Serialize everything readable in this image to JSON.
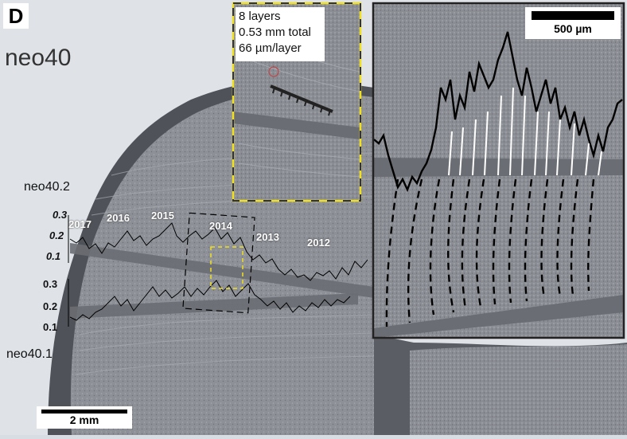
{
  "panel": {
    "letter": "D",
    "sample": "neo40"
  },
  "subsamples": {
    "upper": "neo40.2",
    "lower": "neo40.1"
  },
  "upper_ticks": [
    "0.3",
    "0.2",
    "0.1"
  ],
  "lower_ticks": [
    "0.3",
    "0.2",
    "0.1"
  ],
  "years": [
    "2017",
    "2016",
    "2015",
    "2014",
    "2013",
    "2012"
  ],
  "scale_main": "2 mm",
  "scale_inset": "500 µm",
  "info": {
    "layers": "8 layers",
    "total": "0.53 mm total",
    "per_layer": "66 µm/layer"
  },
  "colors": {
    "background": "#d8dde3",
    "shell": "#8f9298",
    "highlight": "#f0e020",
    "trace": "#000000"
  }
}
